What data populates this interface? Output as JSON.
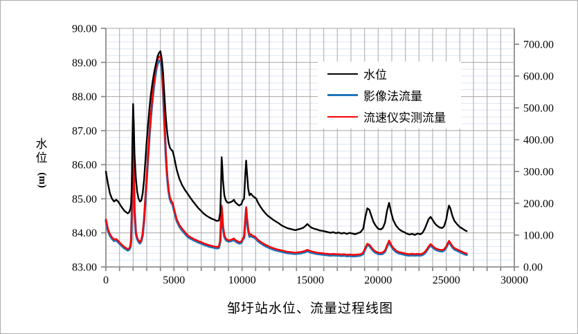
{
  "figure": {
    "title": "邹圩站水位、流量过程线图",
    "y_left_title_chars": "水位",
    "y_left_title_unit": "(m)"
  },
  "legend": {
    "items": [
      "水位",
      "影像法流量",
      "流速仪实测流量"
    ]
  },
  "colors": {
    "water_level": "#000000",
    "image_method": "#1f74b8",
    "current_meter": "#ff0000",
    "major_grid": "#a6a6a6",
    "minor_grid": "#dce6f1",
    "axis": "#7f7f7f"
  },
  "chart_data": {
    "type": "line",
    "title": "邹圩站水位、流量过程线图",
    "grid": "on",
    "legend_position": "upper-center-right",
    "x_axis": {
      "min": 0,
      "max": 30000,
      "major_tick_interval": 5000,
      "grid_interval": 1000,
      "tick_labels": [
        "0",
        "5000",
        "10000",
        "15000",
        "20000",
        "25000",
        "30000"
      ]
    },
    "y_left_axis": {
      "title": "水位 (m)",
      "min": 83,
      "max": 90,
      "major_interval": 1.0,
      "minor_grid_interval": 0.2,
      "tick_labels": [
        "83.00",
        "84.00",
        "85.00",
        "86.00",
        "87.00",
        "88.00",
        "89.00",
        "90.00"
      ]
    },
    "y_right_axis": {
      "min": 0,
      "max": 750,
      "major_interval": 100,
      "tick_labels": [
        "0.00",
        "100.00",
        "200.00",
        "300.00",
        "400.00",
        "500.00",
        "600.00",
        "700.00"
      ]
    },
    "x": [
      0,
      150,
      300,
      450,
      600,
      750,
      900,
      1050,
      1200,
      1350,
      1500,
      1600,
      1700,
      1800,
      1850,
      1900,
      1950,
      2000,
      2050,
      2100,
      2200,
      2300,
      2400,
      2500,
      2600,
      2700,
      2800,
      2900,
      3000,
      3100,
      3200,
      3300,
      3400,
      3500,
      3600,
      3700,
      3800,
      3900,
      4000,
      4100,
      4200,
      4300,
      4400,
      4500,
      4600,
      4700,
      4800,
      4900,
      5000,
      5200,
      5400,
      5600,
      5800,
      6000,
      6200,
      6400,
      6600,
      6800,
      7000,
      7200,
      7400,
      7600,
      7800,
      8000,
      8150,
      8300,
      8400,
      8450,
      8500,
      8550,
      8600,
      8700,
      8800,
      8900,
      9000,
      9150,
      9300,
      9400,
      9500,
      9650,
      9800,
      9950,
      10050,
      10150,
      10250,
      10300,
      10350,
      10450,
      10550,
      10650,
      10750,
      10850,
      10950,
      11050,
      11150,
      11300,
      11500,
      11700,
      11900,
      12100,
      12300,
      12500,
      12700,
      12900,
      13100,
      13300,
      13500,
      13700,
      13900,
      14100,
      14300,
      14500,
      14650,
      14800,
      14950,
      15100,
      15300,
      15500,
      15700,
      15900,
      16100,
      16300,
      16500,
      16700,
      16900,
      17100,
      17300,
      17500,
      17700,
      17900,
      18100,
      18300,
      18500,
      18700,
      18900,
      19050,
      19200,
      19350,
      19500,
      19650,
      19800,
      20000,
      20200,
      20350,
      20500,
      20650,
      20800,
      20950,
      21100,
      21300,
      21500,
      21700,
      21900,
      22100,
      22300,
      22500,
      22700,
      22900,
      23100,
      23250,
      23400,
      23550,
      23700,
      23850,
      24000,
      24150,
      24300,
      24500,
      24700,
      24850,
      25000,
      25100,
      25200,
      25300,
      25450,
      25600,
      25800,
      26000,
      26200,
      26350,
      26500
    ],
    "series": [
      {
        "id": "water-level",
        "name": "水位",
        "axis": "left",
        "color": "#000000",
        "width": 2.4,
        "z": 3,
        "values": [
          85.8,
          85.45,
          85.15,
          85.0,
          84.92,
          84.97,
          84.92,
          84.82,
          84.73,
          84.65,
          84.6,
          84.57,
          84.6,
          84.7,
          84.85,
          85.4,
          86.7,
          87.78,
          87.2,
          86.3,
          85.6,
          85.2,
          85.0,
          84.92,
          84.95,
          85.15,
          85.55,
          86.1,
          86.7,
          87.2,
          87.65,
          88.05,
          88.35,
          88.6,
          88.82,
          89.0,
          89.18,
          89.28,
          89.33,
          89.12,
          88.7,
          88.0,
          87.4,
          86.95,
          86.65,
          86.5,
          86.44,
          86.4,
          86.25,
          85.85,
          85.58,
          85.4,
          85.26,
          85.15,
          85.03,
          84.92,
          84.82,
          84.72,
          84.64,
          84.56,
          84.5,
          84.45,
          84.41,
          84.38,
          84.35,
          84.36,
          84.6,
          85.3,
          86.22,
          85.95,
          85.55,
          85.1,
          84.96,
          84.9,
          84.88,
          84.9,
          84.93,
          84.97,
          84.9,
          84.84,
          84.8,
          84.84,
          84.95,
          85.0,
          85.8,
          86.12,
          85.85,
          85.3,
          85.1,
          85.15,
          85.1,
          85.06,
          85.03,
          85.0,
          84.9,
          84.8,
          84.68,
          84.58,
          84.5,
          84.44,
          84.38,
          84.33,
          84.28,
          84.22,
          84.18,
          84.14,
          84.12,
          84.1,
          84.08,
          84.1,
          84.12,
          84.15,
          84.2,
          84.26,
          84.2,
          84.15,
          84.12,
          84.1,
          84.07,
          84.06,
          84.04,
          84.02,
          84.0,
          84.02,
          83.99,
          84.01,
          83.98,
          84.0,
          83.97,
          84.0,
          83.98,
          83.96,
          83.99,
          84.02,
          84.12,
          84.45,
          84.72,
          84.68,
          84.5,
          84.32,
          84.22,
          84.12,
          84.1,
          84.15,
          84.3,
          84.65,
          84.88,
          84.6,
          84.38,
          84.22,
          84.12,
          84.06,
          84.02,
          83.98,
          83.95,
          83.97,
          83.94,
          83.98,
          83.96,
          84.0,
          84.1,
          84.25,
          84.4,
          84.47,
          84.38,
          84.28,
          84.22,
          84.16,
          84.14,
          84.2,
          84.4,
          84.62,
          84.8,
          84.72,
          84.5,
          84.35,
          84.25,
          84.17,
          84.12,
          84.08,
          84.05
        ]
      },
      {
        "id": "image-method-discharge",
        "name": "影像法流量",
        "axis": "right",
        "color": "#1f74b8",
        "width": 3.4,
        "z": 1,
        "values": [
          145,
          115,
          98,
          89,
          82,
          84,
          78,
          71,
          65,
          59,
          55,
          52,
          54,
          62,
          81,
          164,
          312,
          391,
          302,
          179,
          105,
          88,
          79,
          74,
          81,
          100,
          145,
          209,
          278,
          347,
          411,
          470,
          517,
          556,
          593,
          622,
          639,
          647,
          650,
          627,
          553,
          450,
          352,
          283,
          238,
          214,
          202,
          196,
          179,
          145,
          127,
          115,
          105,
          95,
          90,
          85,
          81,
          77,
          74,
          70,
          67,
          64,
          62,
          60,
          59,
          60,
          81,
          135,
          187,
          160,
          125,
          95,
          86,
          82,
          80,
          81,
          83,
          86,
          81,
          77,
          74,
          76,
          86,
          91,
          150,
          182,
          157,
          115,
          95,
          98,
          95,
          93,
          91,
          87,
          82,
          77,
          71,
          66,
          62,
          58,
          55,
          52,
          50,
          48,
          46,
          44,
          43,
          42,
          41,
          42,
          43,
          45,
          47,
          50,
          47,
          45,
          43,
          41,
          40,
          39,
          38,
          37,
          36,
          37,
          36,
          36,
          35,
          36,
          34,
          35,
          34,
          34,
          35,
          36,
          41,
          56,
          69,
          66,
          58,
          50,
          45,
          41,
          40,
          42,
          48,
          64,
          79,
          66,
          56,
          48,
          43,
          41,
          39,
          37,
          36,
          37,
          36,
          37,
          36,
          38,
          42,
          50,
          60,
          68,
          62,
          56,
          53,
          50,
          49,
          52,
          61,
          70,
          78,
          72,
          62,
          55,
          51,
          47,
          43,
          40,
          38
        ]
      },
      {
        "id": "current-meter-discharge",
        "name": "流速仪实测流量",
        "axis": "right",
        "color": "#ff0000",
        "width": 2.4,
        "z": 2,
        "values": [
          150,
          120,
          103,
          93,
          86,
          88,
          82,
          75,
          69,
          63,
          59,
          56,
          58,
          66,
          85,
          170,
          320,
          400,
          310,
          185,
          110,
          92,
          83,
          78,
          85,
          105,
          150,
          215,
          285,
          355,
          420,
          480,
          528,
          568,
          605,
          635,
          652,
          660,
          663,
          640,
          565,
          460,
          360,
          290,
          245,
          220,
          208,
          202,
          185,
          150,
          132,
          120,
          110,
          100,
          94,
          89,
          85,
          81,
          78,
          74,
          71,
          68,
          66,
          64,
          63,
          64,
          85,
          140,
          193,
          165,
          130,
          100,
          90,
          86,
          84,
          85,
          87,
          90,
          85,
          81,
          78,
          80,
          90,
          95,
          155,
          188,
          162,
          120,
          100,
          103,
          99,
          97,
          95,
          91,
          86,
          81,
          75,
          70,
          66,
          62,
          59,
          56,
          54,
          52,
          50,
          48,
          47,
          46,
          45,
          46,
          47,
          49,
          51,
          54,
          51,
          49,
          47,
          45,
          44,
          43,
          42,
          41,
          40,
          41,
          40,
          40,
          39,
          40,
          38,
          39,
          38,
          38,
          39,
          40,
          45,
          60,
          73,
          70,
          62,
          54,
          49,
          45,
          44,
          46,
          52,
          68,
          83,
          70,
          60,
          52,
          47,
          45,
          43,
          41,
          40,
          41,
          40,
          41,
          40,
          42,
          46,
          54,
          64,
          72,
          66,
          60,
          57,
          54,
          53,
          56,
          65,
          74,
          82,
          76,
          66,
          59,
          55,
          51,
          47,
          44,
          42
        ]
      }
    ]
  }
}
